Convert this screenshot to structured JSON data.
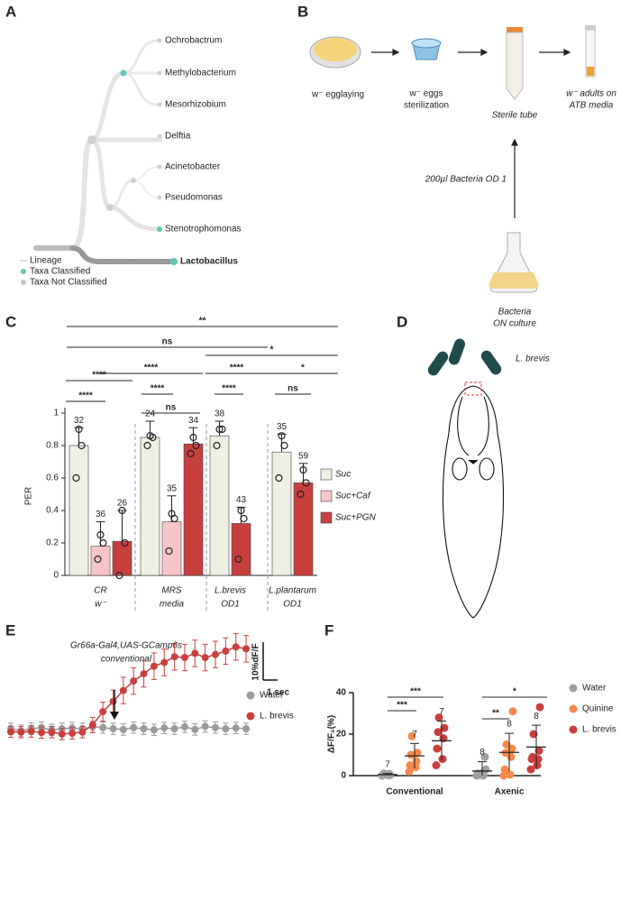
{
  "panels": [
    "A",
    "B",
    "C",
    "D",
    "E",
    "F"
  ],
  "tree": {
    "taxa": [
      "Ochrobactrum",
      "Methylobacterium",
      "Mesorhizobium",
      "Delftia",
      "Acinetobacter",
      "Pseudomonas",
      "Stenotrophomonas",
      "Lactobacillus"
    ],
    "legend": [
      "Lineage",
      "Taxa Classified",
      "Taxa Not Classified"
    ]
  },
  "protocol": {
    "steps": [
      [
        "w⁻ egglaying"
      ],
      [
        "w⁻ eggs",
        "sterilization"
      ],
      [
        "Sterile tube"
      ],
      [
        "w⁻ adults on",
        "ATB media"
      ]
    ],
    "inoculum": "200µl Bacteria OD 1",
    "culture": [
      "Bacteria",
      "ON culture"
    ]
  },
  "illustration": {
    "label": "L. brevis"
  },
  "chart_data": [
    {
      "type": "bar",
      "ylabel": "PER",
      "categories": [
        [
          "CR",
          "w⁻"
        ],
        [
          "MRS",
          "media"
        ],
        [
          "L.brevis",
          "OD1"
        ],
        [
          "L.plantarum",
          "OD1"
        ]
      ],
      "series": [
        {
          "name": "Suc",
          "color": "#efefe4",
          "values": [
            0.8,
            0.85,
            0.86,
            0.76
          ],
          "errors": [
            0.11,
            0.1,
            0.09,
            0.11
          ],
          "n": [
            32,
            24,
            38,
            35
          ],
          "points": [
            [
              0.6,
              0.8,
              0.9
            ],
            [
              0.8,
              0.85,
              0.86
            ],
            [
              0.8,
              0.9,
              0.9
            ],
            [
              0.6,
              0.8,
              0.86
            ]
          ]
        },
        {
          "name": "Suc+Caf",
          "color": "#f7c5c8",
          "values": [
            0.18,
            0.33,
            null,
            null
          ],
          "errors": [
            0.15,
            0.16,
            null,
            null
          ],
          "n": [
            36,
            35,
            null,
            null
          ],
          "points": [
            [
              0.1,
              0.2,
              0.25
            ],
            [
              0.15,
              0.35,
              0.38
            ],
            null,
            null
          ]
        },
        {
          "name": "Suc+PGN",
          "color": "#c8403e",
          "values": [
            0.21,
            0.81,
            0.32,
            0.57
          ],
          "errors": [
            0.19,
            0.1,
            0.1,
            0.12
          ],
          "n": [
            26,
            34,
            43,
            59
          ],
          "points": [
            [
              0.0,
              0.2,
              0.4
            ],
            [
              0.75,
              0.8,
              0.85
            ],
            [
              0.1,
              0.35,
              0.4
            ],
            [
              0.5,
              0.57,
              0.65
            ]
          ]
        }
      ],
      "ylim": [
        0,
        1
      ],
      "yticks": [
        0,
        0.2,
        0.4,
        0.6,
        0.8,
        1
      ],
      "annotations": [
        "****",
        "****",
        "**",
        "ns",
        "*",
        "****",
        "****",
        "*",
        "****",
        "ns",
        "****",
        "ns"
      ]
    },
    {
      "type": "line",
      "title": "Gr66a-Gal4,UAS-GCamp6s",
      "subtitle": "conventional",
      "series": [
        {
          "name": "Water",
          "color": "#9b9b9b",
          "values": [
            0,
            -0.5,
            0,
            0.3,
            -0.3,
            0,
            0.2,
            0,
            0.5,
            0.3,
            0,
            -0.2,
            0.3,
            0,
            -0.3,
            0.2,
            0,
            0.5,
            -0.2,
            0.6,
            0.3,
            0,
            0.2,
            0
          ],
          "errors": [
            1.5,
            1.5,
            1.5,
            1.5,
            1.5,
            1.5,
            1.5,
            1.5,
            1.5,
            1.5,
            1.5,
            1.5,
            1.5,
            1.5,
            1.5,
            1.5,
            1.5,
            1.5,
            1.5,
            1.5,
            1.5,
            1.5,
            1.5,
            1.5
          ]
        },
        {
          "name": "L. brevis",
          "color": "#c8403e",
          "values": [
            -0.8,
            -0.9,
            -0.7,
            -1.0,
            -0.9,
            -1.4,
            -1.2,
            -0.9,
            1.0,
            4.5,
            7.2,
            10.1,
            12.6,
            14.5,
            16.5,
            17.5,
            19.0,
            18.8,
            19.9,
            18.8,
            19.6,
            20.5,
            21.6,
            21.1
          ],
          "errors": [
            1.5,
            1.5,
            1.5,
            1.5,
            1.5,
            1.5,
            1.5,
            1.5,
            2.0,
            2.5,
            3.0,
            3.5,
            3.5,
            3.5,
            3.5,
            3.5,
            3.5,
            3.5,
            3.5,
            3.5,
            3.5,
            3.5,
            3.5,
            3.5
          ]
        }
      ],
      "scale_bar": {
        "y": 10,
        "y_label": "10%dF/F",
        "x_label": "1 sec"
      }
    },
    {
      "type": "dot",
      "ylabel": "ΔF/F₀(%)",
      "categories": [
        "Conventional",
        "Axenic"
      ],
      "series": [
        {
          "name": "Water",
          "color": "#a0a0a0",
          "values": [
            0.5,
            2.2
          ],
          "errors": [
            0.5,
            4.5
          ],
          "n": [
            7,
            8
          ],
          "points": [
            [
              0,
              0.2,
              0.5,
              0.8,
              1,
              0.3,
              0.6
            ],
            [
              0,
              0,
              1,
              2,
              0.5,
              9,
              0.3,
              3
            ]
          ]
        },
        {
          "name": "Quinine",
          "color": "#f4894b",
          "values": [
            9.5,
            11.2
          ],
          "errors": [
            6,
            9.2
          ],
          "n": [
            7,
            8
          ],
          "points": [
            [
              2,
              4,
              5,
              7,
              10,
              11,
              19
            ],
            [
              0,
              0.5,
              3,
              9,
              11,
              13,
              15,
              31
            ]
          ]
        },
        {
          "name": "L. brevis",
          "color": "#c8403e",
          "values": [
            16.8,
            13.8
          ],
          "errors": [
            9.5,
            10.5
          ],
          "n": [
            7,
            8
          ],
          "points": [
            [
              5,
              8,
              13,
              18,
              21,
              23,
              28
            ],
            [
              3,
              5,
              8,
              8,
              9,
              12,
              20,
              33
            ]
          ]
        }
      ],
      "ylim": [
        0,
        40
      ],
      "yticks": [
        0,
        20,
        40
      ],
      "annotations": [
        "***",
        "***",
        "**",
        "*"
      ]
    }
  ]
}
